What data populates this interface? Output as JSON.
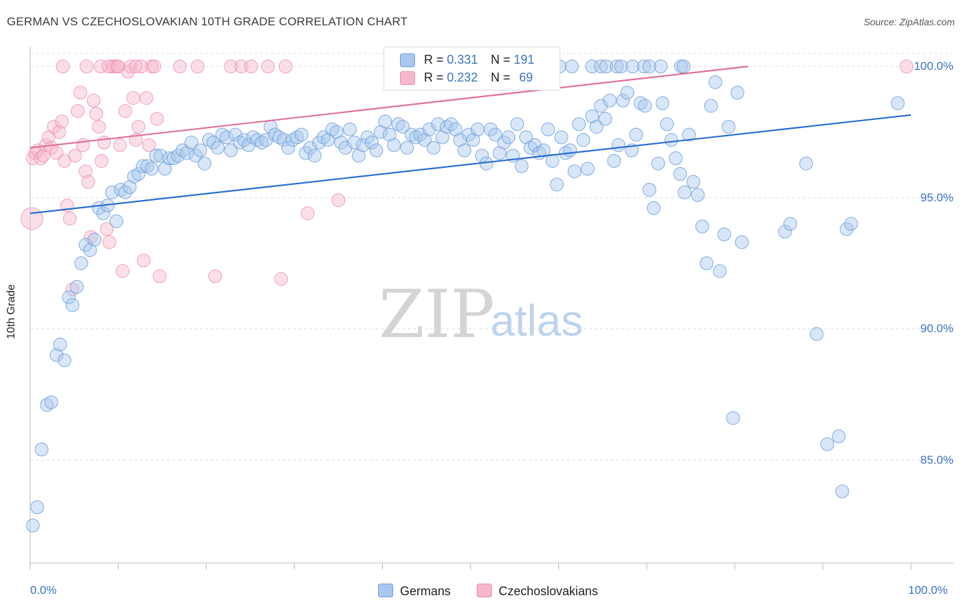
{
  "header": {
    "title": "GERMAN VS CZECHOSLOVAKIAN 10TH GRADE CORRELATION CHART",
    "source": "Source: ZipAtlas.com"
  },
  "watermark": {
    "zip": "ZIP",
    "atlas": "atlas"
  },
  "legend": {
    "r_label": "R =",
    "n_label": "N =",
    "series": [
      {
        "name": "Germans",
        "r": "0.331",
        "n": "191"
      },
      {
        "name": "Czechoslovakians",
        "r": "0.232",
        "n": "69"
      }
    ]
  },
  "colors": {
    "germans_fill": "#a9c7ee",
    "germans_stroke": "#6f9fdb",
    "germans_line": "#2b6ed4",
    "czech_fill": "#f6b7cb",
    "czech_stroke": "#ea8fab",
    "czech_line": "#e0709a",
    "axis_text": "#3a73c4",
    "grid": "#dddddd"
  },
  "chart_data": {
    "type": "scatter",
    "title": "GERMAN VS CZECHOSLOVAKIAN 10TH GRADE CORRELATION CHART",
    "xlabel": "",
    "ylabel": "10th Grade",
    "xlim": [
      0,
      100
    ],
    "ylim": [
      80.5,
      100.3
    ],
    "x_tick_labels": [
      "0.0%",
      "100.0%"
    ],
    "y_ticks": [
      85,
      90,
      95,
      100
    ],
    "y_tick_labels": [
      "85.0%",
      "90.0%",
      "95.0%",
      "100.0%"
    ],
    "grid": true,
    "legend_position": "top-center",
    "series": [
      {
        "name": "Germans",
        "r": 0.331,
        "n": 191,
        "trend": {
          "x": [
            0,
            100
          ],
          "y": [
            94.4,
            98.15
          ]
        },
        "points": [
          [
            0.3,
            82.5
          ],
          [
            0.8,
            83.2
          ],
          [
            1.3,
            85.4
          ],
          [
            1.9,
            87.1
          ],
          [
            2.4,
            87.2
          ],
          [
            3.0,
            89.0
          ],
          [
            3.4,
            89.4
          ],
          [
            3.9,
            88.8
          ],
          [
            4.4,
            91.2
          ],
          [
            4.8,
            90.9
          ],
          [
            5.3,
            91.6
          ],
          [
            5.8,
            92.5
          ],
          [
            6.3,
            93.2
          ],
          [
            6.8,
            93.0
          ],
          [
            7.3,
            93.4
          ],
          [
            7.8,
            94.6
          ],
          [
            8.3,
            94.4
          ],
          [
            8.8,
            94.7
          ],
          [
            9.3,
            95.2
          ],
          [
            9.8,
            94.1
          ],
          [
            10.3,
            95.3
          ],
          [
            10.8,
            95.2
          ],
          [
            11.3,
            95.4
          ],
          [
            11.8,
            95.8
          ],
          [
            12.3,
            95.9
          ],
          [
            12.8,
            96.2
          ],
          [
            13.3,
            96.2
          ],
          [
            13.8,
            96.1
          ],
          [
            14.3,
            96.6
          ],
          [
            14.8,
            96.6
          ],
          [
            15.3,
            96.1
          ],
          [
            15.8,
            96.5
          ],
          [
            16.3,
            96.5
          ],
          [
            16.8,
            96.6
          ],
          [
            17.3,
            96.8
          ],
          [
            17.8,
            96.7
          ],
          [
            18.3,
            97.1
          ],
          [
            18.8,
            96.6
          ],
          [
            19.3,
            96.8
          ],
          [
            19.8,
            96.3
          ],
          [
            20.3,
            97.2
          ],
          [
            20.8,
            97.1
          ],
          [
            21.3,
            96.9
          ],
          [
            21.8,
            97.4
          ],
          [
            22.3,
            97.3
          ],
          [
            22.8,
            96.8
          ],
          [
            23.3,
            97.4
          ],
          [
            23.8,
            97.1
          ],
          [
            24.3,
            97.2
          ],
          [
            24.8,
            97.0
          ],
          [
            25.3,
            97.3
          ],
          [
            25.8,
            97.2
          ],
          [
            26.3,
            97.1
          ],
          [
            26.8,
            97.2
          ],
          [
            27.3,
            97.7
          ],
          [
            27.8,
            97.4
          ],
          [
            28.3,
            97.3
          ],
          [
            28.8,
            97.2
          ],
          [
            29.3,
            96.9
          ],
          [
            29.8,
            97.2
          ],
          [
            30.3,
            97.3
          ],
          [
            30.8,
            97.4
          ],
          [
            31.3,
            96.7
          ],
          [
            31.8,
            96.9
          ],
          [
            32.3,
            96.6
          ],
          [
            32.8,
            97.1
          ],
          [
            33.3,
            97.3
          ],
          [
            33.8,
            97.2
          ],
          [
            34.3,
            97.6
          ],
          [
            34.8,
            97.5
          ],
          [
            35.3,
            97.1
          ],
          [
            35.8,
            96.9
          ],
          [
            36.3,
            97.6
          ],
          [
            36.8,
            97.1
          ],
          [
            37.3,
            96.6
          ],
          [
            37.8,
            97.0
          ],
          [
            38.3,
            97.3
          ],
          [
            38.8,
            97.1
          ],
          [
            39.3,
            96.8
          ],
          [
            39.8,
            97.5
          ],
          [
            40.3,
            97.9
          ],
          [
            40.8,
            97.4
          ],
          [
            41.3,
            97.0
          ],
          [
            41.8,
            97.8
          ],
          [
            42.3,
            97.7
          ],
          [
            42.8,
            96.9
          ],
          [
            43.3,
            97.4
          ],
          [
            43.8,
            97.3
          ],
          [
            44.3,
            97.4
          ],
          [
            44.8,
            97.2
          ],
          [
            45.3,
            97.6
          ],
          [
            45.8,
            96.9
          ],
          [
            46.3,
            97.8
          ],
          [
            46.8,
            97.3
          ],
          [
            47.3,
            97.7
          ],
          [
            47.8,
            97.8
          ],
          [
            48.3,
            97.6
          ],
          [
            48.8,
            97.2
          ],
          [
            49.3,
            96.8
          ],
          [
            49.8,
            97.4
          ],
          [
            50.3,
            97.2
          ],
          [
            50.8,
            97.6
          ],
          [
            51.3,
            96.6
          ],
          [
            51.8,
            96.3
          ],
          [
            52.3,
            97.6
          ],
          [
            52.8,
            97.4
          ],
          [
            53.3,
            96.7
          ],
          [
            53.8,
            97.1
          ],
          [
            54.3,
            97.3
          ],
          [
            54.8,
            96.6
          ],
          [
            55.3,
            97.8
          ],
          [
            55.8,
            96.2
          ],
          [
            56.3,
            97.3
          ],
          [
            56.8,
            96.9
          ],
          [
            57.3,
            97.0
          ],
          [
            57.8,
            96.7
          ],
          [
            58.3,
            96.8
          ],
          [
            58.8,
            97.6
          ],
          [
            59.3,
            96.4
          ],
          [
            59.8,
            95.5
          ],
          [
            60.3,
            97.3
          ],
          [
            60.8,
            96.7
          ],
          [
            61.3,
            96.8
          ],
          [
            61.8,
            96.0
          ],
          [
            62.3,
            97.8
          ],
          [
            62.8,
            97.2
          ],
          [
            63.3,
            96.1
          ],
          [
            63.8,
            98.1
          ],
          [
            64.3,
            97.7
          ],
          [
            64.8,
            98.5
          ],
          [
            65.3,
            98.0
          ],
          [
            65.8,
            98.7
          ],
          [
            66.3,
            96.4
          ],
          [
            66.8,
            97.0
          ],
          [
            67.3,
            98.7
          ],
          [
            67.8,
            99.0
          ],
          [
            68.3,
            96.8
          ],
          [
            68.8,
            97.4
          ],
          [
            69.3,
            98.6
          ],
          [
            69.8,
            98.5
          ],
          [
            70.3,
            95.3
          ],
          [
            70.8,
            94.6
          ],
          [
            71.3,
            96.3
          ],
          [
            71.8,
            98.6
          ],
          [
            72.3,
            97.8
          ],
          [
            72.8,
            97.2
          ],
          [
            73.3,
            96.5
          ],
          [
            73.8,
            95.9
          ],
          [
            74.3,
            95.2
          ],
          [
            74.8,
            97.4
          ],
          [
            75.3,
            95.6
          ],
          [
            75.8,
            95.1
          ],
          [
            76.3,
            93.9
          ],
          [
            76.8,
            92.5
          ],
          [
            77.3,
            98.5
          ],
          [
            77.8,
            99.4
          ],
          [
            78.3,
            92.2
          ],
          [
            78.8,
            93.6
          ],
          [
            79.3,
            97.7
          ],
          [
            79.8,
            86.6
          ],
          [
            80.3,
            99.0
          ],
          [
            80.8,
            93.3
          ],
          [
            45.5,
            99.8
          ],
          [
            50.8,
            100.0
          ],
          [
            53.3,
            100.0
          ],
          [
            55.6,
            100.0
          ],
          [
            58.9,
            100.0
          ],
          [
            60.1,
            100.0
          ],
          [
            61.5,
            100.0
          ],
          [
            63.8,
            100.0
          ],
          [
            64.8,
            100.0
          ],
          [
            65.4,
            100.0
          ],
          [
            66.6,
            100.0
          ],
          [
            67.1,
            100.0
          ],
          [
            68.4,
            100.0
          ],
          [
            69.7,
            100.0
          ],
          [
            70.3,
            100.0
          ],
          [
            71.6,
            100.0
          ],
          [
            73.9,
            100.0
          ],
          [
            74.2,
            100.0
          ],
          [
            98.5,
            98.6
          ],
          [
            85.7,
            93.7
          ],
          [
            86.3,
            94.0
          ],
          [
            89.3,
            89.8
          ],
          [
            90.5,
            85.6
          ],
          [
            91.8,
            85.9
          ],
          [
            92.2,
            83.8
          ],
          [
            92.7,
            93.8
          ],
          [
            93.2,
            94.0
          ],
          [
            88.1,
            96.3
          ]
        ]
      },
      {
        "name": "Czechoslovakians",
        "r": 0.232,
        "n": 69,
        "trend": {
          "x": [
            0,
            81.5
          ],
          "y": [
            96.9,
            100.0
          ]
        },
        "points": [
          [
            0.3,
            96.5
          ],
          [
            0.6,
            96.7
          ],
          [
            0.9,
            96.8
          ],
          [
            1.2,
            96.5
          ],
          [
            1.5,
            96.6
          ],
          [
            1.8,
            97.0
          ],
          [
            2.1,
            97.3
          ],
          [
            2.4,
            96.9
          ],
          [
            2.7,
            97.7
          ],
          [
            3.0,
            96.7
          ],
          [
            3.3,
            97.5
          ],
          [
            3.6,
            97.9
          ],
          [
            3.9,
            96.4
          ],
          [
            4.2,
            94.7
          ],
          [
            4.5,
            94.2
          ],
          [
            4.8,
            91.5
          ],
          [
            5.1,
            96.6
          ],
          [
            5.4,
            98.3
          ],
          [
            5.7,
            99.0
          ],
          [
            6.0,
            97.0
          ],
          [
            6.3,
            96.0
          ],
          [
            6.6,
            95.6
          ],
          [
            6.9,
            93.5
          ],
          [
            7.2,
            98.7
          ],
          [
            7.5,
            98.2
          ],
          [
            7.8,
            97.7
          ],
          [
            8.1,
            96.4
          ],
          [
            8.4,
            97.1
          ],
          [
            8.7,
            93.8
          ],
          [
            9.0,
            93.3
          ],
          [
            9.3,
            100.0
          ],
          [
            9.6,
            100.0
          ],
          [
            9.9,
            100.0
          ],
          [
            10.2,
            97.0
          ],
          [
            10.5,
            92.2
          ],
          [
            10.8,
            98.3
          ],
          [
            11.1,
            99.8
          ],
          [
            11.4,
            100.0
          ],
          [
            11.7,
            98.8
          ],
          [
            12.0,
            97.2
          ],
          [
            12.3,
            97.7
          ],
          [
            12.6,
            100.0
          ],
          [
            12.9,
            92.6
          ],
          [
            13.2,
            98.8
          ],
          [
            13.5,
            97.0
          ],
          [
            13.8,
            100.0
          ],
          [
            14.1,
            100.0
          ],
          [
            14.4,
            98.0
          ],
          [
            14.7,
            92.0
          ],
          [
            17.0,
            100.0
          ],
          [
            19.0,
            100.0
          ],
          [
            22.8,
            100.0
          ],
          [
            24.0,
            100.0
          ],
          [
            25.1,
            100.0
          ],
          [
            27.0,
            100.0
          ],
          [
            29.0,
            100.0
          ],
          [
            31.5,
            94.4
          ],
          [
            35.0,
            94.9
          ],
          [
            21.0,
            92.0
          ],
          [
            28.5,
            91.9
          ],
          [
            43.0,
            100.0
          ],
          [
            99.5,
            100.0
          ],
          [
            0.2,
            94.2
          ],
          [
            3.7,
            100.0
          ],
          [
            6.4,
            100.0
          ],
          [
            8.0,
            100.0
          ],
          [
            8.9,
            100.0
          ],
          [
            10.0,
            100.0
          ],
          [
            12.0,
            100.0
          ]
        ]
      }
    ]
  }
}
